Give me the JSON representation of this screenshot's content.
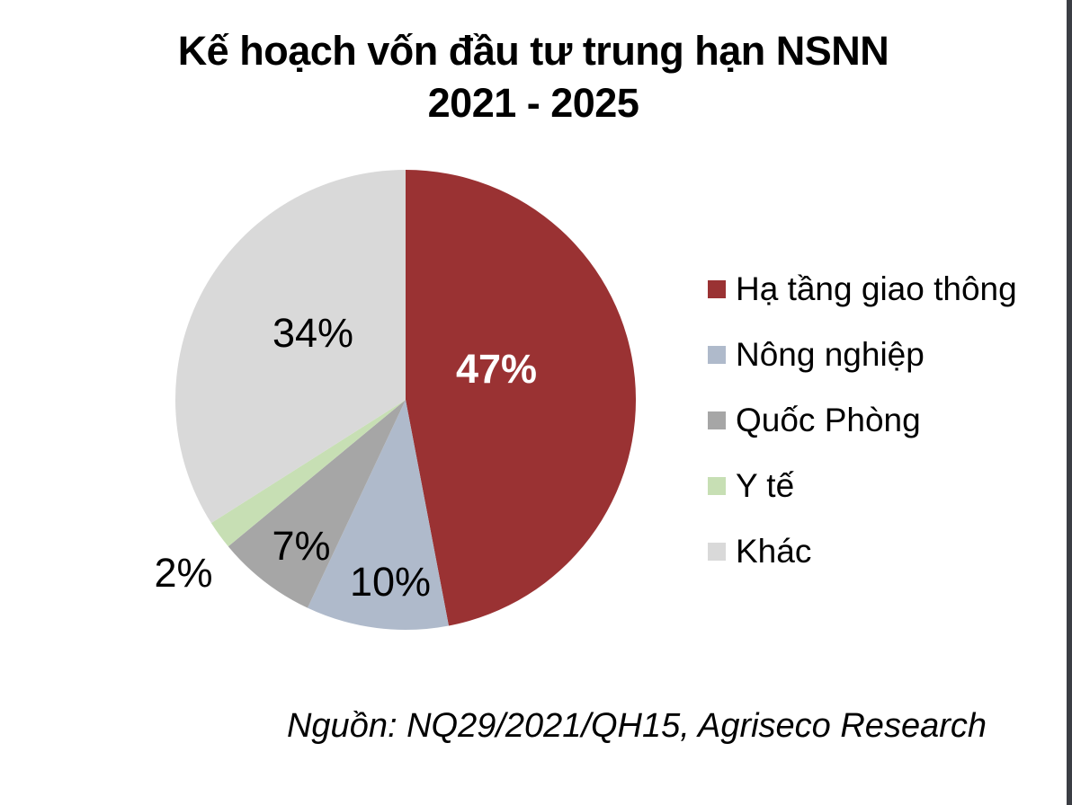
{
  "page": {
    "background": "#ffffff",
    "right_edge_strip_color": "#3B3E44"
  },
  "title": {
    "line1": "Kế hoạch vốn đầu tư trung hạn NSNN",
    "line2": "2021 - 2025"
  },
  "chart_data": {
    "type": "pie",
    "title": "Kế hoạch vốn đầu tư trung hạn NSNN 2021 - 2025",
    "unit": "%",
    "start_angle_deg": 0,
    "direction": "clockwise",
    "legend_position": "right",
    "slices": [
      {
        "label": "Hạ tầng giao thông",
        "value": 47,
        "display": "47%",
        "color": "#9A3233"
      },
      {
        "label": "Nông nghiệp",
        "value": 10,
        "display": "10%",
        "color": "#AFBACB"
      },
      {
        "label": "Quốc Phòng",
        "value": 7,
        "display": "7%",
        "color": "#A6A6A6"
      },
      {
        "label": "Y tế",
        "value": 2,
        "display": "2%",
        "color": "#C7DFB4"
      },
      {
        "label": "Khác",
        "value": 34,
        "display": "34%",
        "color": "#D9D9D9"
      }
    ]
  },
  "footer": {
    "source": "Nguồn: NQ29/2021/QH15, Agriseco Research"
  }
}
